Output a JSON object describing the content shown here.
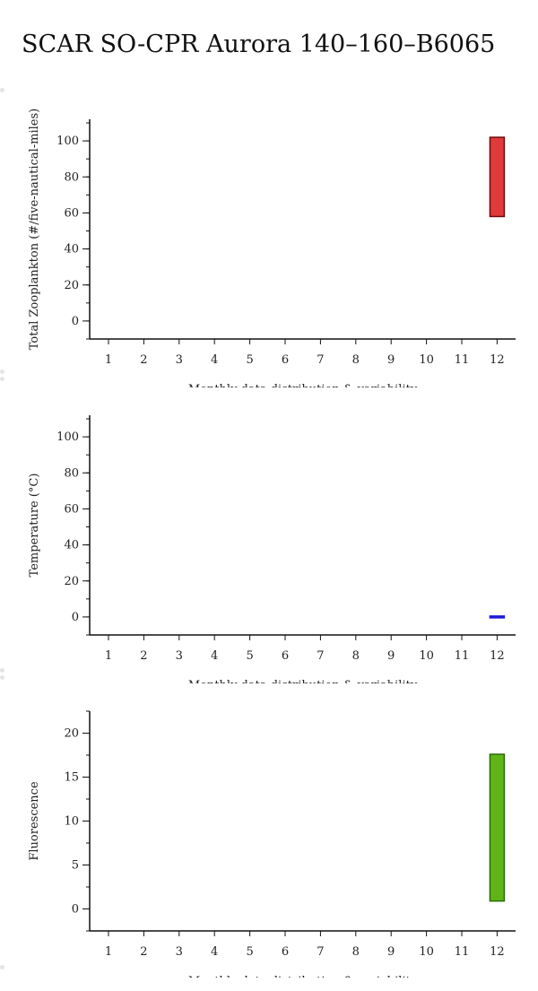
{
  "title": "SCAR SO-CPR Aurora 140–160–B6065",
  "chart_data": [
    {
      "type": "bar",
      "ylabel": "Total Zooplankton (#/five-nautical-miles)",
      "xlabel": "Monthly data distribution & variability",
      "x_ticks": [
        "1",
        "2",
        "3",
        "4",
        "5",
        "6",
        "7",
        "8",
        "9",
        "10",
        "11",
        "12"
      ],
      "ylim": [
        -10,
        112
      ],
      "y_ticks": [
        0,
        20,
        40,
        60,
        80,
        100
      ],
      "bars": [
        {
          "month": 12,
          "low": 58,
          "high": 102
        }
      ],
      "fill": "#e03a3a",
      "stroke": "#6b0d0d"
    },
    {
      "type": "bar",
      "ylabel": "Temperature (°C)",
      "xlabel": "Monthly data distribution & variability",
      "x_ticks": [
        "1",
        "2",
        "3",
        "4",
        "5",
        "6",
        "7",
        "8",
        "9",
        "10",
        "11",
        "12"
      ],
      "ylim": [
        -10,
        112
      ],
      "y_ticks": [
        0,
        20,
        40,
        60,
        80,
        100
      ],
      "bars": [
        {
          "month": 12,
          "low": -0.5,
          "high": 0.5
        }
      ],
      "fill": "#1a1ad6",
      "stroke": "#1a1ad6"
    },
    {
      "type": "bar",
      "ylabel": "Fluorescence",
      "xlabel": "Monthly data distribution & variability",
      "x_ticks": [
        "1",
        "2",
        "3",
        "4",
        "5",
        "6",
        "7",
        "8",
        "9",
        "10",
        "11",
        "12"
      ],
      "ylim": [
        -2.5,
        22.5
      ],
      "y_ticks": [
        0,
        5,
        10,
        15,
        20
      ],
      "bars": [
        {
          "month": 12,
          "low": 0.9,
          "high": 17.6
        }
      ],
      "fill": "#5fb515",
      "stroke": "#2d6a10"
    }
  ]
}
